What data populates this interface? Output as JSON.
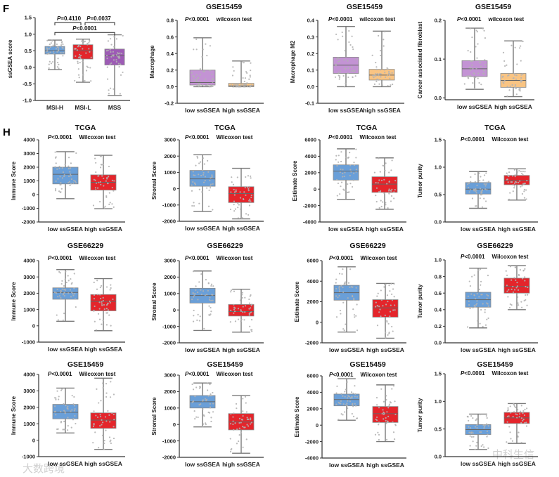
{
  "panel_labels": [
    "F",
    "H"
  ],
  "watermarks": [
    "大数跨境",
    "中科生信"
  ],
  "colors": {
    "blue": "#6a9fd8",
    "red": "#e4252b",
    "purple": "#9d5bb5",
    "light_purple": "#c393d4",
    "orange": "#f9c483",
    "whisker": "#7a7a7a",
    "dot": "#b3b3b3"
  },
  "chart_data": [
    {
      "type": "box",
      "title": "",
      "ylabel": "ssGSEA score",
      "ylim": [
        -1.0,
        1.5
      ],
      "yticks": [
        "-1.0",
        "-0.5",
        "0.0",
        "0.5",
        "1.0",
        "1.5"
      ],
      "categories": [
        "MSI-H",
        "MSI-L",
        "MSS"
      ],
      "box_colors": [
        "blue",
        "red",
        "purple"
      ],
      "boxes": [
        [
          -0.07,
          0.4,
          0.5,
          0.63,
          0.82
        ],
        [
          -0.45,
          0.25,
          0.5,
          0.68,
          0.85
        ],
        [
          -0.85,
          0.07,
          0.35,
          0.55,
          0.98
        ]
      ],
      "comparisons": [
        {
          "a": 0,
          "b": 1,
          "y": 1.35,
          "label_italic": "P",
          "label": "=0.4110"
        },
        {
          "a": 1,
          "b": 2,
          "y": 1.35,
          "label_italic": "P",
          "label": "=0.0037"
        },
        {
          "a": 0,
          "b": 2,
          "y": 1.05,
          "label_italic": "P",
          "label": "<0.0001"
        }
      ]
    },
    {
      "type": "box",
      "title": "GSE15459",
      "ylabel": "Macrophage",
      "ylim": [
        -0.2,
        0.8
      ],
      "yticks": [
        "-0.2",
        "0.0",
        "0.2",
        "0.4",
        "0.6",
        "0.8"
      ],
      "categories": [
        "low ssGSEA",
        "high ssGSEA"
      ],
      "box_colors": [
        "light_purple",
        "orange"
      ],
      "boxes": [
        [
          0.0,
          0.02,
          0.05,
          0.2,
          0.59
        ],
        [
          0.0,
          0.0,
          0.01,
          0.04,
          0.31
        ]
      ],
      "annotation": {
        "p_italic": "P",
        "p": "<0.0001",
        "test": "wilcoxon test"
      }
    },
    {
      "type": "box",
      "title": "GSE15459",
      "ylabel": "Macrophage M2",
      "ylim": [
        -0.1,
        0.4
      ],
      "yticks": [
        "-0.1",
        "0.0",
        "0.1",
        "0.2",
        "0.3",
        "0.4"
      ],
      "categories": [
        "low ssGSEA",
        "high ssGSEA"
      ],
      "box_colors": [
        "light_purple",
        "orange"
      ],
      "boxes": [
        [
          0.0,
          0.08,
          0.13,
          0.178,
          0.363
        ],
        [
          0.0,
          0.04,
          0.07,
          0.105,
          0.335
        ]
      ],
      "annotation": {
        "p_italic": "P",
        "p": "<0.0001",
        "test": "wilcoxon test"
      }
    },
    {
      "type": "box",
      "title": "GSE15459",
      "ylabel": "Cancer associated fibroblast",
      "ylim": [
        -0.005,
        0.2
      ],
      "yticks_values": [
        0.0,
        0.1,
        0.2
      ],
      "yticks": [
        "0.0",
        "0.1",
        "0.2"
      ],
      "categories": [
        "low ssGSEA",
        "high ssGSEA"
      ],
      "box_colors": [
        "light_purple",
        "orange"
      ],
      "boxes": [
        [
          0.022,
          0.055,
          0.075,
          0.096,
          0.18
        ],
        [
          0.003,
          0.027,
          0.045,
          0.063,
          0.147
        ]
      ],
      "annotation": {
        "p_italic": "P",
        "p": "<0.0001",
        "test": "wilcoxon test"
      }
    },
    {
      "type": "box",
      "title": "TCGA",
      "ylabel": "Immune Score",
      "ylim": [
        -2000,
        4000
      ],
      "yticks": [
        "-2000",
        "-1000",
        "0",
        "1000",
        "2000",
        "3000",
        "4000"
      ],
      "categories": [
        "low ssGSEA",
        "high ssGSEA"
      ],
      "box_colors": [
        "blue",
        "red"
      ],
      "boxes": [
        [
          -300,
          780,
          1480,
          2000,
          3130
        ],
        [
          -1030,
          330,
          900,
          1440,
          2870
        ]
      ],
      "annotation": {
        "p_italic": "P",
        "p": "<0.0001",
        "test": "Wilcoxon test"
      }
    },
    {
      "type": "box",
      "title": "TCGA",
      "ylabel": "Stromal Score",
      "ylim": [
        -2000,
        3000
      ],
      "yticks": [
        "-2000",
        "-1000",
        "0",
        "1000",
        "2000",
        "3000"
      ],
      "categories": [
        "low ssGSEA",
        "high ssGSEA"
      ],
      "box_colors": [
        "blue",
        "red"
      ],
      "boxes": [
        [
          -1400,
          150,
          600,
          1120,
          2080
        ],
        [
          -1850,
          -850,
          -300,
          120,
          1250
        ]
      ],
      "annotation": {
        "p_italic": "P",
        "p": "<0.0001",
        "test": "Wilcoxon test"
      }
    },
    {
      "type": "box",
      "title": "TCGA",
      "ylabel": "Estimate Score",
      "ylim": [
        -4000,
        6000
      ],
      "yticks": [
        "-4000",
        "-2000",
        "0",
        "2000",
        "4000",
        "6000"
      ],
      "categories": [
        "low ssGSEA",
        "high ssGSEA"
      ],
      "box_colors": [
        "blue",
        "red"
      ],
      "boxes": [
        [
          -1250,
          1100,
          2200,
          2950,
          4900
        ],
        [
          -2450,
          -400,
          600,
          1500,
          3800
        ]
      ],
      "annotation": {
        "p_italic": "P",
        "p": "<0.0001",
        "test": "Wilcoxon test"
      }
    },
    {
      "type": "box",
      "title": "TCGA",
      "ylabel": "Tumor purity",
      "ylim": [
        0.0,
        1.5
      ],
      "yticks": [
        "0.0",
        "0.5",
        "1.0",
        "1.5"
      ],
      "categories": [
        "low ssGSEA",
        "high ssGSEA"
      ],
      "box_colors": [
        "blue",
        "red"
      ],
      "boxes": [
        [
          0.25,
          0.51,
          0.6,
          0.72,
          0.92
        ],
        [
          0.4,
          0.68,
          0.76,
          0.85,
          0.97
        ]
      ],
      "annotation": {
        "p_italic": "P",
        "p": "<0.0001",
        "test": "Wilcoxon test"
      }
    },
    {
      "type": "box",
      "title": "GSE66229",
      "ylabel": "Immune Score",
      "ylim": [
        -1000,
        4000
      ],
      "yticks": [
        "-1000",
        "0",
        "1000",
        "2000",
        "3000",
        "4000"
      ],
      "categories": [
        "low ssGSEA",
        "high ssGSEA"
      ],
      "box_colors": [
        "blue",
        "red"
      ],
      "boxes": [
        [
          280,
          1630,
          2050,
          2330,
          3450
        ],
        [
          -300,
          920,
          1500,
          1920,
          2900
        ]
      ],
      "annotation": {
        "p_italic": "P",
        "p": "<0.0001",
        "test": "Wilcoxon test"
      }
    },
    {
      "type": "box",
      "title": "GSE66229",
      "ylabel": "Stromal Score",
      "ylim": [
        -2000,
        3000
      ],
      "yticks": [
        "-2000",
        "-1000",
        "0",
        "1000",
        "2000",
        "3000"
      ],
      "categories": [
        "low ssGSEA",
        "high ssGSEA"
      ],
      "box_colors": [
        "blue",
        "red"
      ],
      "boxes": [
        [
          -1250,
          420,
          880,
          1320,
          2370
        ],
        [
          -1350,
          -370,
          -100,
          330,
          1260
        ]
      ],
      "annotation": {
        "p_italic": "P",
        "p": "<0.0001",
        "test": "Wilcoxon test"
      }
    },
    {
      "type": "box",
      "title": "GSE66229",
      "ylabel": "Estimate Score",
      "ylim": [
        -2000,
        6000
      ],
      "yticks": [
        "-2000",
        "0",
        "2000",
        "4000",
        "6000"
      ],
      "categories": [
        "low ssGSEA",
        "high ssGSEA"
      ],
      "box_colors": [
        "blue",
        "red"
      ],
      "boxes": [
        [
          -950,
          2150,
          2880,
          3600,
          5400
        ],
        [
          -1550,
          500,
          1400,
          2200,
          3780
        ]
      ],
      "annotation": {
        "p_italic": "P",
        "p": "<0.0001",
        "test": "Wilcoxon test"
      }
    },
    {
      "type": "box",
      "title": "GSE66229",
      "ylabel": "Tumor purity",
      "ylim": [
        0.0,
        1.0
      ],
      "yticks": [
        "0.0",
        "0.2",
        "0.4",
        "0.6",
        "0.8",
        "1.0"
      ],
      "categories": [
        "low ssGSEA",
        "high ssGSEA"
      ],
      "box_colors": [
        "blue",
        "red"
      ],
      "boxes": [
        [
          0.18,
          0.43,
          0.52,
          0.61,
          0.9
        ],
        [
          0.4,
          0.6,
          0.68,
          0.78,
          0.93
        ]
      ],
      "annotation": {
        "p_italic": "P",
        "p": "<0.0001",
        "test": "Wilcoxon test"
      }
    },
    {
      "type": "box",
      "title": "GSE15459",
      "ylabel": "Immune Score",
      "ylim": [
        -1000,
        4000
      ],
      "yticks": [
        "-1000",
        "0",
        "1000",
        "2000",
        "3000",
        "4000"
      ],
      "categories": [
        "low ssGSEA",
        "high ssGSEA"
      ],
      "box_colors": [
        "blue",
        "red"
      ],
      "boxes": [
        [
          440,
          1300,
          1700,
          2180,
          3170
        ],
        [
          -560,
          720,
          1220,
          1660,
          3770
        ]
      ],
      "annotation": {
        "p_italic": "P",
        "p": "<0.0001",
        "test": "Wilcoxon test"
      }
    },
    {
      "type": "box",
      "title": "GSE15459",
      "ylabel": "Stromal Score",
      "ylim": [
        -2000,
        3000
      ],
      "yticks": [
        "-2000",
        "-1000",
        "0",
        "1000",
        "2000",
        "3000"
      ],
      "categories": [
        "low ssGSEA",
        "high ssGSEA"
      ],
      "box_colors": [
        "blue",
        "red"
      ],
      "boxes": [
        [
          -150,
          1000,
          1380,
          1760,
          2520
        ],
        [
          -1750,
          -330,
          150,
          660,
          1760
        ]
      ],
      "annotation": {
        "p_italic": "P",
        "p": "<0.0001",
        "test": "Wilcoxon test"
      }
    },
    {
      "type": "box",
      "title": "GSE15459",
      "ylabel": "Estimate Score",
      "ylim": [
        -4000,
        6000
      ],
      "yticks": [
        "-4000",
        "-2000",
        "0",
        "2000",
        "4000",
        "6000"
      ],
      "categories": [
        "low ssGSEA",
        "high ssGSEA"
      ],
      "box_colors": [
        "blue",
        "red"
      ],
      "boxes": [
        [
          600,
          2350,
          3120,
          3780,
          5650
        ],
        [
          -2000,
          330,
          1400,
          2270,
          4900
        ]
      ],
      "annotation": {
        "p_italic": "P",
        "p": "<0.0001",
        "test": "Wilcoxon test"
      }
    },
    {
      "type": "box",
      "title": "GSE15459",
      "ylabel": "Tumor purity",
      "ylim": [
        0.0,
        1.5
      ],
      "yticks": [
        "0.0",
        "0.5",
        "1.0",
        "1.5"
      ],
      "categories": [
        "low ssGSEA",
        "high ssGSEA"
      ],
      "box_colors": [
        "blue",
        "red"
      ],
      "boxes": [
        [
          0.13,
          0.4,
          0.49,
          0.58,
          0.77
        ],
        [
          0.24,
          0.6,
          0.7,
          0.8,
          0.96
        ]
      ],
      "annotation": {
        "p_italic": "P",
        "p": "<0.0001",
        "test": "Wilcoxon test"
      }
    }
  ]
}
